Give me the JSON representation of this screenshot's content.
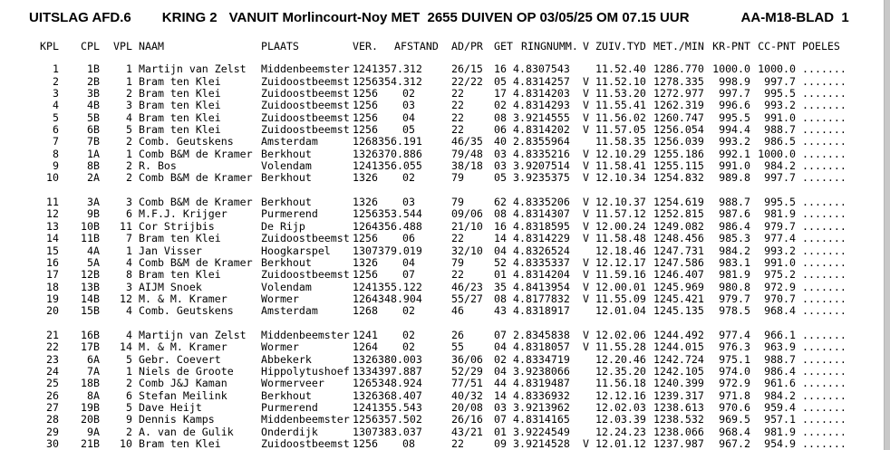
{
  "header": {
    "title_left": "UITSLAG AFD.6",
    "title_kring": "KRING 2",
    "title_main": "VANUIT Morlincourt-Noy MET  2655 DUIVEN OP 03/05/25 OM 07.15 UUR",
    "title_blad": "AA-M18-BLAD  1"
  },
  "table": {
    "columns": [
      {
        "key": "kpl",
        "label": "KPL"
      },
      {
        "key": "cpl",
        "label": "CPL"
      },
      {
        "key": "vpl",
        "label": "VPL"
      },
      {
        "key": "naam",
        "label": "NAAM"
      },
      {
        "key": "plaats",
        "label": "PLAATS"
      },
      {
        "key": "ver",
        "label": "VER."
      },
      {
        "key": "afstand",
        "label": "AFSTAND"
      },
      {
        "key": "adpr",
        "label": "AD/PR"
      },
      {
        "key": "get",
        "label": "GET"
      },
      {
        "key": "ring",
        "label": "RINGNUMM."
      },
      {
        "key": "v",
        "label": "V"
      },
      {
        "key": "tyd",
        "label": "ZUIV.TYD"
      },
      {
        "key": "mmin",
        "label": "MET./MIN"
      },
      {
        "key": "kr",
        "label": "KR-PNT"
      },
      {
        "key": "cc",
        "label": "CC-PNT"
      },
      {
        "key": "poeles",
        "label": "POELES"
      }
    ],
    "blocks": [
      [
        {
          "kpl": "1",
          "cpl": "1B",
          "vpl": "1",
          "naam": "Martijn van Zelst",
          "plaats": "Middenbeemster",
          "ver": "1241",
          "afstand": "357.312",
          "adpr": "26/15",
          "get": "16",
          "ring": "4.8307543",
          "v": "",
          "tyd": "11.52.40",
          "mmin": "1286.770",
          "kr": "1000.0",
          "cc": "1000.0",
          "poeles": "......."
        },
        {
          "kpl": "2",
          "cpl": "2B",
          "vpl": "1",
          "naam": "Bram ten Klei",
          "plaats": "Zuidoostbeemst",
          "ver": "1256",
          "afstand": "354.312",
          "adpr": "22/22",
          "get": "05",
          "ring": "4.8314257",
          "v": "V",
          "tyd": "11.52.10",
          "mmin": "1278.335",
          "kr": "998.9",
          "cc": "997.7",
          "poeles": "......."
        },
        {
          "kpl": "3",
          "cpl": "3B",
          "vpl": "2",
          "naam": "Bram ten Klei",
          "plaats": "Zuidoostbeemst",
          "ver": "1256",
          "afstand": "02 ",
          "adpr": "22",
          "get": "17",
          "ring": "4.8314203",
          "v": "V",
          "tyd": "11.53.20",
          "mmin": "1272.977",
          "kr": "997.7",
          "cc": "995.5",
          "poeles": "......."
        },
        {
          "kpl": "4",
          "cpl": "4B",
          "vpl": "3",
          "naam": "Bram ten Klei",
          "plaats": "Zuidoostbeemst",
          "ver": "1256",
          "afstand": "03 ",
          "adpr": "22",
          "get": "02",
          "ring": "4.8314293",
          "v": "V",
          "tyd": "11.55.41",
          "mmin": "1262.319",
          "kr": "996.6",
          "cc": "993.2",
          "poeles": "......."
        },
        {
          "kpl": "5",
          "cpl": "5B",
          "vpl": "4",
          "naam": "Bram ten Klei",
          "plaats": "Zuidoostbeemst",
          "ver": "1256",
          "afstand": "04 ",
          "adpr": "22",
          "get": "08",
          "ring": "3.9214555",
          "v": "V",
          "tyd": "11.56.02",
          "mmin": "1260.747",
          "kr": "995.5",
          "cc": "991.0",
          "poeles": "......."
        },
        {
          "kpl": "6",
          "cpl": "6B",
          "vpl": "5",
          "naam": "Bram ten Klei",
          "plaats": "Zuidoostbeemst",
          "ver": "1256",
          "afstand": "05 ",
          "adpr": "22",
          "get": "06",
          "ring": "4.8314202",
          "v": "V",
          "tyd": "11.57.05",
          "mmin": "1256.054",
          "kr": "994.4",
          "cc": "988.7",
          "poeles": "......."
        },
        {
          "kpl": "7",
          "cpl": "7B",
          "vpl": "2",
          "naam": "Comb. Geutskens",
          "plaats": "Amsterdam",
          "ver": "1268",
          "afstand": "356.191",
          "adpr": "46/35",
          "get": "40",
          "ring": "2.8355964",
          "v": "",
          "tyd": "11.58.35",
          "mmin": "1256.039",
          "kr": "993.2",
          "cc": "986.5",
          "poeles": "......."
        },
        {
          "kpl": "8",
          "cpl": "1A",
          "vpl": "1",
          "naam": "Comb B&M de Kramer",
          "plaats": "Berkhout",
          "ver": "1326",
          "afstand": "370.886",
          "adpr": "79/48",
          "get": "03",
          "ring": "4.8335216",
          "v": "V",
          "tyd": "12.10.29",
          "mmin": "1255.186",
          "kr": "992.1",
          "cc": "1000.0",
          "poeles": "......."
        },
        {
          "kpl": "9",
          "cpl": "8B",
          "vpl": "2",
          "naam": "R. Bos",
          "plaats": "Volendam",
          "ver": "1241",
          "afstand": "356.055",
          "adpr": "38/18",
          "get": "03",
          "ring": "3.9207514",
          "v": "V",
          "tyd": "11.58.41",
          "mmin": "1255.115",
          "kr": "991.0",
          "cc": "984.2",
          "poeles": "......."
        },
        {
          "kpl": "10",
          "cpl": "2A",
          "vpl": "2",
          "naam": "Comb B&M de Kramer",
          "plaats": "Berkhout",
          "ver": "1326",
          "afstand": "02 ",
          "adpr": "79",
          "get": "05",
          "ring": "3.9235375",
          "v": "V",
          "tyd": "12.10.34",
          "mmin": "1254.832",
          "kr": "989.8",
          "cc": "997.7",
          "poeles": "......."
        }
      ],
      [
        {
          "kpl": "11",
          "cpl": "3A",
          "vpl": "3",
          "naam": "Comb B&M de Kramer",
          "plaats": "Berkhout",
          "ver": "1326",
          "afstand": "03 ",
          "adpr": "79",
          "get": "62",
          "ring": "4.8335206",
          "v": "V",
          "tyd": "12.10.37",
          "mmin": "1254.619",
          "kr": "988.7",
          "cc": "995.5",
          "poeles": "......."
        },
        {
          "kpl": "12",
          "cpl": "9B",
          "vpl": "6",
          "naam": "M.F.J. Krijger",
          "plaats": "Purmerend",
          "ver": "1256",
          "afstand": "353.544",
          "adpr": "09/06",
          "get": "08",
          "ring": "4.8314307",
          "v": "V",
          "tyd": "11.57.12",
          "mmin": "1252.815",
          "kr": "987.6",
          "cc": "981.9",
          "poeles": "......."
        },
        {
          "kpl": "13",
          "cpl": "10B",
          "vpl": "11",
          "naam": "Cor Strijbis",
          "plaats": "De Rijp",
          "ver": "1264",
          "afstand": "356.488",
          "adpr": "21/10",
          "get": "16",
          "ring": "4.8318595",
          "v": "V",
          "tyd": "12.00.24",
          "mmin": "1249.082",
          "kr": "986.4",
          "cc": "979.7",
          "poeles": "......."
        },
        {
          "kpl": "14",
          "cpl": "11B",
          "vpl": "7",
          "naam": "Bram ten Klei",
          "plaats": "Zuidoostbeemst",
          "ver": "1256",
          "afstand": "06 ",
          "adpr": "22",
          "get": "14",
          "ring": "4.8314229",
          "v": "V",
          "tyd": "11.58.48",
          "mmin": "1248.456",
          "kr": "985.3",
          "cc": "977.4",
          "poeles": "......."
        },
        {
          "kpl": "15",
          "cpl": "4A",
          "vpl": "1",
          "naam": "Jan Visser",
          "plaats": "Hoogkarspel",
          "ver": "1307",
          "afstand": "379.019",
          "adpr": "32/10",
          "get": "04",
          "ring": "4.8326524",
          "v": "",
          "tyd": "12.18.46",
          "mmin": "1247.731",
          "kr": "984.2",
          "cc": "993.2",
          "poeles": "......."
        },
        {
          "kpl": "16",
          "cpl": "5A",
          "vpl": "4",
          "naam": "Comb B&M de Kramer",
          "plaats": "Berkhout",
          "ver": "1326",
          "afstand": "04 ",
          "adpr": "79",
          "get": "52",
          "ring": "4.8335337",
          "v": "V",
          "tyd": "12.12.17",
          "mmin": "1247.586",
          "kr": "983.1",
          "cc": "991.0",
          "poeles": "......."
        },
        {
          "kpl": "17",
          "cpl": "12B",
          "vpl": "8",
          "naam": "Bram ten Klei",
          "plaats": "Zuidoostbeemst",
          "ver": "1256",
          "afstand": "07 ",
          "adpr": "22",
          "get": "01",
          "ring": "4.8314204",
          "v": "V",
          "tyd": "11.59.16",
          "mmin": "1246.407",
          "kr": "981.9",
          "cc": "975.2",
          "poeles": "......."
        },
        {
          "kpl": "18",
          "cpl": "13B",
          "vpl": "3",
          "naam": "AIJM Snoek",
          "plaats": "Volendam",
          "ver": "1241",
          "afstand": "355.122",
          "adpr": "46/23",
          "get": "35",
          "ring": "4.8413954",
          "v": "V",
          "tyd": "12.00.01",
          "mmin": "1245.969",
          "kr": "980.8",
          "cc": "972.9",
          "poeles": "......."
        },
        {
          "kpl": "19",
          "cpl": "14B",
          "vpl": "12",
          "naam": "M. & M. Kramer",
          "plaats": "Wormer",
          "ver": "1264",
          "afstand": "348.904",
          "adpr": "55/27",
          "get": "08",
          "ring": "4.8177832",
          "v": "V",
          "tyd": "11.55.09",
          "mmin": "1245.421",
          "kr": "979.7",
          "cc": "970.7",
          "poeles": "......."
        },
        {
          "kpl": "20",
          "cpl": "15B",
          "vpl": "4",
          "naam": "Comb. Geutskens",
          "plaats": "Amsterdam",
          "ver": "1268",
          "afstand": "02 ",
          "adpr": "46",
          "get": "43",
          "ring": "4.8318917",
          "v": "",
          "tyd": "12.01.04",
          "mmin": "1245.135",
          "kr": "978.5",
          "cc": "968.4",
          "poeles": "......."
        }
      ],
      [
        {
          "kpl": "21",
          "cpl": "16B",
          "vpl": "4",
          "naam": "Martijn van Zelst",
          "plaats": "Middenbeemster",
          "ver": "1241",
          "afstand": "02 ",
          "adpr": "26",
          "get": "07",
          "ring": "2.8345838",
          "v": "V",
          "tyd": "12.02.06",
          "mmin": "1244.492",
          "kr": "977.4",
          "cc": "966.1",
          "poeles": "......."
        },
        {
          "kpl": "22",
          "cpl": "17B",
          "vpl": "14",
          "naam": "M. & M. Kramer",
          "plaats": "Wormer",
          "ver": "1264",
          "afstand": "02 ",
          "adpr": "55",
          "get": "04",
          "ring": "4.8318057",
          "v": "V",
          "tyd": "11.55.28",
          "mmin": "1244.015",
          "kr": "976.3",
          "cc": "963.9",
          "poeles": "......."
        },
        {
          "kpl": "23",
          "cpl": "6A",
          "vpl": "5",
          "naam": "Gebr. Coevert",
          "plaats": "Abbekerk",
          "ver": "1326",
          "afstand": "380.003",
          "adpr": "36/06",
          "get": "02",
          "ring": "4.8334719",
          "v": "",
          "tyd": "12.20.46",
          "mmin": "1242.724",
          "kr": "975.1",
          "cc": "988.7",
          "poeles": "......."
        },
        {
          "kpl": "24",
          "cpl": "7A",
          "vpl": "1",
          "naam": "Niels de Groote",
          "plaats": "Hippolytushoef",
          "ver": "1334",
          "afstand": "397.887",
          "adpr": "52/29",
          "get": "04",
          "ring": "3.9238066",
          "v": "",
          "tyd": "12.35.20",
          "mmin": "1242.105",
          "kr": "974.0",
          "cc": "986.4",
          "poeles": "......."
        },
        {
          "kpl": "25",
          "cpl": "18B",
          "vpl": "2",
          "naam": "Comb J&J Kaman",
          "plaats": "Wormerveer",
          "ver": "1265",
          "afstand": "348.924",
          "adpr": "77/51",
          "get": "44",
          "ring": "4.8319487",
          "v": "",
          "tyd": "11.56.18",
          "mmin": "1240.399",
          "kr": "972.9",
          "cc": "961.6",
          "poeles": "......."
        },
        {
          "kpl": "26",
          "cpl": "8A",
          "vpl": "6",
          "naam": "Stefan Meilink",
          "plaats": "Berkhout",
          "ver": "1326",
          "afstand": "368.407",
          "adpr": "40/32",
          "get": "14",
          "ring": "4.8336932",
          "v": "",
          "tyd": "12.12.16",
          "mmin": "1239.317",
          "kr": "971.8",
          "cc": "984.2",
          "poeles": "......."
        },
        {
          "kpl": "27",
          "cpl": "19B",
          "vpl": "5",
          "naam": "Dave Heijt",
          "plaats": "Purmerend",
          "ver": "1241",
          "afstand": "355.543",
          "adpr": "20/08",
          "get": "03",
          "ring": "3.9213962",
          "v": "",
          "tyd": "12.02.03",
          "mmin": "1238.613",
          "kr": "970.6",
          "cc": "959.4",
          "poeles": "......."
        },
        {
          "kpl": "28",
          "cpl": "20B",
          "vpl": "9",
          "naam": "Dennis Kamps",
          "plaats": "Middenbeemster",
          "ver": "1256",
          "afstand": "357.502",
          "adpr": "26/16",
          "get": "07",
          "ring": "4.8314165",
          "v": "",
          "tyd": "12.03.39",
          "mmin": "1238.532",
          "kr": "969.5",
          "cc": "957.1",
          "poeles": "......."
        },
        {
          "kpl": "29",
          "cpl": "9A",
          "vpl": "2",
          "naam": "A. van de Gulik",
          "plaats": "Onderdijk",
          "ver": "1307",
          "afstand": "383.037",
          "adpr": "43/21",
          "get": "01",
          "ring": "3.9224549",
          "v": "",
          "tyd": "12.24.23",
          "mmin": "1238.066",
          "kr": "968.4",
          "cc": "981.9",
          "poeles": "......."
        },
        {
          "kpl": "30",
          "cpl": "21B",
          "vpl": "10",
          "naam": "Bram ten Klei",
          "plaats": "Zuidoostbeemst",
          "ver": "1256",
          "afstand": "08 ",
          "adpr": "22",
          "get": "09",
          "ring": "3.9214528",
          "v": "V",
          "tyd": "12.01.12",
          "mmin": "1237.987",
          "kr": "967.2",
          "cc": "954.9",
          "poeles": "......."
        }
      ]
    ]
  }
}
